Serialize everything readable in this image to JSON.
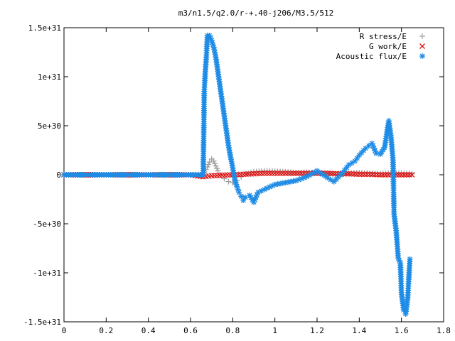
{
  "chart_data": {
    "type": "scatter",
    "title": "m3/n1.5/q2.0/r-+.40-j206/M3.5/512",
    "xlabel": "",
    "ylabel": "",
    "xlim": [
      0,
      1.8
    ],
    "ylim": [
      -1.5e+31,
      1.5e+31
    ],
    "grid": false,
    "legend_position": "top-right",
    "x_ticks": [
      {
        "value": 0,
        "label": "0"
      },
      {
        "value": 0.2,
        "label": "0.2"
      },
      {
        "value": 0.4,
        "label": "0.4"
      },
      {
        "value": 0.6,
        "label": "0.6"
      },
      {
        "value": 0.8,
        "label": "0.8"
      },
      {
        "value": 1.0,
        "label": "1"
      },
      {
        "value": 1.2,
        "label": "1.2"
      },
      {
        "value": 1.4,
        "label": "1.4"
      },
      {
        "value": 1.6,
        "label": "1.6"
      },
      {
        "value": 1.8,
        "label": "1.8"
      }
    ],
    "y_ticks": [
      {
        "value": 1.5e+31,
        "label": "1.5e+31"
      },
      {
        "value": 1e+31,
        "label": "1e+31"
      },
      {
        "value": 5e+30,
        "label": "5e+30"
      },
      {
        "value": 0,
        "label": "0"
      },
      {
        "value": -5e+30,
        "label": "-5e+30"
      },
      {
        "value": -1e+31,
        "label": "-1e+31"
      },
      {
        "value": -1.5e+31,
        "label": "-1.5e+31"
      }
    ],
    "series": [
      {
        "name": "R stress/E",
        "marker": "plus",
        "color": "#a0a0a0",
        "x": [
          0.0,
          0.2,
          0.4,
          0.6,
          0.66,
          0.68,
          0.69,
          0.7,
          0.71,
          0.72,
          0.73,
          0.74,
          0.76,
          0.78,
          0.8,
          0.82,
          0.84,
          0.86,
          0.9,
          0.95,
          1.0,
          1.05,
          1.1,
          1.15,
          1.2,
          1.25,
          1.3,
          1.35,
          1.4,
          1.45,
          1.5,
          1.55,
          1.6,
          1.65
        ],
        "y": [
          0,
          0,
          0,
          0,
          0,
          8e+29,
          1.3e+30,
          1.6e+30,
          1.4e+30,
          9e+29,
          4e+29,
          0,
          -4e+29,
          -7e+29,
          -8e+29,
          -6e+29,
          -2e+29,
          1e+29,
          3e+29,
          4e+29,
          3.5e+29,
          3e+29,
          2e+29,
          2.5e+29,
          2e+29,
          1.5e+29,
          0,
          1.5e+29,
          2e+29,
          1.5e+29,
          1e+29,
          2e+29,
          1.5e+29,
          1e+29
        ]
      },
      {
        "name": "G work/E",
        "marker": "cross",
        "color": "#e01010",
        "x": [
          0.0,
          0.2,
          0.4,
          0.6,
          0.66,
          0.7,
          0.75,
          0.8,
          0.85,
          0.9,
          0.95,
          1.0,
          1.05,
          1.1,
          1.15,
          1.2,
          1.25,
          1.3,
          1.35,
          1.4,
          1.45,
          1.5,
          1.55,
          1.6,
          1.65
        ],
        "y": [
          0,
          0,
          0,
          0,
          -2e+29,
          -1e+29,
          -5e+28,
          0,
          5e+28,
          1e+29,
          1.5e+29,
          1.5e+29,
          1.5e+29,
          1.5e+29,
          1.5e+29,
          1.5e+29,
          1.5e+29,
          1e+29,
          1e+29,
          5e+28,
          5e+28,
          0,
          0,
          0,
          0
        ]
      },
      {
        "name": "Acoustic flux/E",
        "marker": "star",
        "color": "#1e8ce6",
        "x": [
          0.0,
          0.1,
          0.2,
          0.3,
          0.4,
          0.5,
          0.6,
          0.66,
          0.665,
          0.67,
          0.675,
          0.68,
          0.69,
          0.7,
          0.71,
          0.72,
          0.73,
          0.74,
          0.75,
          0.76,
          0.77,
          0.78,
          0.79,
          0.8,
          0.81,
          0.82,
          0.83,
          0.84,
          0.85,
          0.86,
          0.88,
          0.9,
          0.92,
          0.95,
          1.0,
          1.05,
          1.1,
          1.15,
          1.2,
          1.25,
          1.28,
          1.32,
          1.35,
          1.38,
          1.4,
          1.43,
          1.46,
          1.48,
          1.5,
          1.52,
          1.54,
          1.55,
          1.56,
          1.565,
          1.575,
          1.585,
          1.595,
          1.6,
          1.61,
          1.62,
          1.63,
          1.64
        ],
        "y": [
          0,
          0,
          0,
          0,
          0,
          0,
          0,
          0,
          8.5e+30,
          1.05e+31,
          1.2e+31,
          1.42e+31,
          1.42e+31,
          1.37e+31,
          1.3e+31,
          1.2e+31,
          1.05e+31,
          9e+30,
          7.5e+30,
          6e+30,
          4.5e+30,
          3e+30,
          1.8e+30,
          7e+29,
          -5e+29,
          -1.2e+30,
          -1.8e+30,
          -2.2e+30,
          -2.6e+30,
          -2.3e+30,
          -2.1e+30,
          -2.8e+30,
          -1.8e+30,
          -1.5e+30,
          -1e+30,
          -8e+29,
          -6e+29,
          -2e+29,
          4e+29,
          -3e+29,
          -7e+29,
          2e+29,
          1e+30,
          1.4e+30,
          2e+30,
          2.7e+30,
          3.2e+30,
          2.2e+30,
          2.1e+30,
          2.8e+30,
          5.5e+30,
          4e+30,
          1.5e+30,
          -4e+30,
          -5.7e+30,
          -8.5e+30,
          -9e+30,
          -1.2e+31,
          -1.38e+31,
          -1.42e+31,
          -1.25e+31,
          -8.6e+30
        ]
      }
    ]
  }
}
